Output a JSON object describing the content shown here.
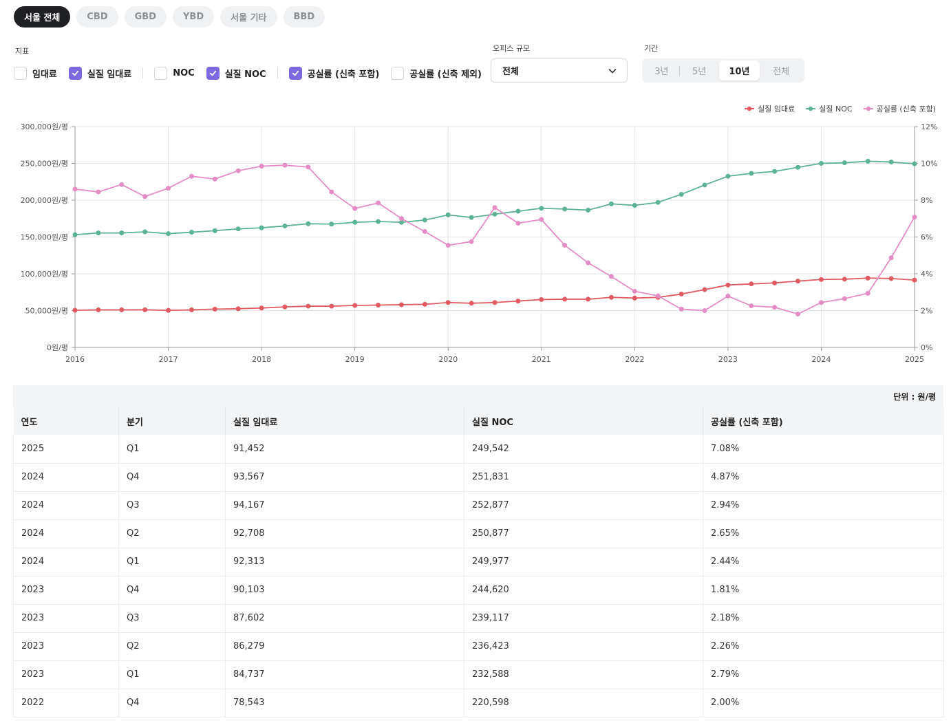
{
  "region_tabs": [
    {
      "label": "서울 전체",
      "active": true
    },
    {
      "label": "CBD",
      "active": false
    },
    {
      "label": "GBD",
      "active": false
    },
    {
      "label": "YBD",
      "active": false
    },
    {
      "label": "서울 기타",
      "active": false
    },
    {
      "label": "BBD",
      "active": false
    }
  ],
  "indicators": {
    "title": "지표",
    "items": [
      {
        "label": "임대료",
        "checked": false
      },
      {
        "label": "실질 임대료",
        "checked": true
      },
      {
        "label": "NOC",
        "checked": false
      },
      {
        "label": "실질 NOC",
        "checked": true
      },
      {
        "label": "공실률 (신축 포함)",
        "checked": true
      },
      {
        "label": "공실률 (신축 제외)",
        "checked": false
      }
    ]
  },
  "office_size": {
    "title": "오피스 규모",
    "selected": "전체"
  },
  "period": {
    "title": "기간",
    "options": [
      {
        "label": "3년",
        "active": false
      },
      {
        "label": "5년",
        "active": false
      },
      {
        "label": "10년",
        "active": true
      },
      {
        "label": "전체",
        "active": false
      }
    ]
  },
  "chart_data": {
    "type": "line",
    "x_tick_labels": [
      "2016",
      "2017",
      "2018",
      "2019",
      "2020",
      "2021",
      "2022",
      "2023",
      "2024",
      "2025"
    ],
    "x_range": [
      2016.0,
      2025.0
    ],
    "y_left": {
      "range": [
        0,
        300000
      ],
      "tick_labels": [
        "0원/평",
        "50,000원/평",
        "100,000원/평",
        "150,000원/평",
        "200,000원/평",
        "250,000원/평",
        "300,000원/평"
      ],
      "tick_values": [
        0,
        50000,
        100000,
        150000,
        200000,
        250000,
        300000
      ]
    },
    "y_right": {
      "range": [
        0,
        12
      ],
      "tick_labels": [
        "0%",
        "2%",
        "4%",
        "6%",
        "8%",
        "10%",
        "12%"
      ],
      "tick_values": [
        0,
        2,
        4,
        6,
        8,
        10,
        12
      ]
    },
    "grid": true,
    "legend_position": "top-right",
    "x": [
      2016.0,
      2016.25,
      2016.5,
      2016.75,
      2017.0,
      2017.25,
      2017.5,
      2017.75,
      2018.0,
      2018.25,
      2018.5,
      2018.75,
      2019.0,
      2019.25,
      2019.5,
      2019.75,
      2020.0,
      2020.25,
      2020.5,
      2020.75,
      2021.0,
      2021.25,
      2021.5,
      2021.75,
      2022.0,
      2022.25,
      2022.5,
      2022.75,
      2023.0,
      2023.25,
      2023.5,
      2023.75,
      2024.0,
      2024.25,
      2024.5,
      2024.75,
      2025.0
    ],
    "series": [
      {
        "name": "실질 임대료",
        "axis": "left",
        "color": "#e05a61",
        "values": [
          50500,
          51000,
          51000,
          51200,
          50300,
          51000,
          52000,
          52500,
          53500,
          55000,
          56000,
          56000,
          57000,
          57500,
          58000,
          58500,
          61000,
          60000,
          61000,
          63000,
          65000,
          65500,
          65500,
          68000,
          67000,
          68000,
          72500,
          78543,
          84737,
          86279,
          87602,
          90103,
          92313,
          92708,
          94167,
          93567,
          91452
        ]
      },
      {
        "name": "실질 NOC",
        "axis": "left",
        "color": "#5bb393",
        "values": [
          153000,
          155500,
          155500,
          157000,
          154500,
          156500,
          158500,
          161000,
          162500,
          165000,
          168000,
          167500,
          170000,
          171000,
          170000,
          173000,
          180000,
          176500,
          181000,
          185000,
          189000,
          188000,
          186500,
          195000,
          193000,
          197000,
          208000,
          220598,
          232588,
          236423,
          239117,
          244620,
          249977,
          250877,
          252877,
          251831,
          249542
        ]
      },
      {
        "name": "공실률 (신축 포함)",
        "axis": "right",
        "color": "#e48dc5",
        "values": [
          8.6,
          8.45,
          8.85,
          8.2,
          8.65,
          9.3,
          9.15,
          9.6,
          9.85,
          9.9,
          9.8,
          8.45,
          7.55,
          7.85,
          7.0,
          6.3,
          5.55,
          5.75,
          7.6,
          6.75,
          6.95,
          5.55,
          4.6,
          3.85,
          3.05,
          2.8,
          2.08,
          2.0,
          2.79,
          2.26,
          2.18,
          1.81,
          2.44,
          2.65,
          2.94,
          4.87,
          7.08
        ]
      }
    ]
  },
  "table": {
    "unit": "단위 : 원/평",
    "headers": [
      "연도",
      "분기",
      "실질 임대료",
      "실질 NOC",
      "공실률 (신축 포함)"
    ],
    "rows": [
      [
        "2025",
        "Q1",
        "91,452",
        "249,542",
        "7.08%"
      ],
      [
        "2024",
        "Q4",
        "93,567",
        "251,831",
        "4.87%"
      ],
      [
        "2024",
        "Q3",
        "94,167",
        "252,877",
        "2.94%"
      ],
      [
        "2024",
        "Q2",
        "92,708",
        "250,877",
        "2.65%"
      ],
      [
        "2024",
        "Q1",
        "92,313",
        "249,977",
        "2.44%"
      ],
      [
        "2023",
        "Q4",
        "90,103",
        "244,620",
        "1.81%"
      ],
      [
        "2023",
        "Q3",
        "87,602",
        "239,117",
        "2.18%"
      ],
      [
        "2023",
        "Q2",
        "86,279",
        "236,423",
        "2.26%"
      ],
      [
        "2023",
        "Q1",
        "84,737",
        "232,588",
        "2.79%"
      ],
      [
        "2022",
        "Q4",
        "78,543",
        "220,598",
        "2.00%"
      ]
    ]
  }
}
